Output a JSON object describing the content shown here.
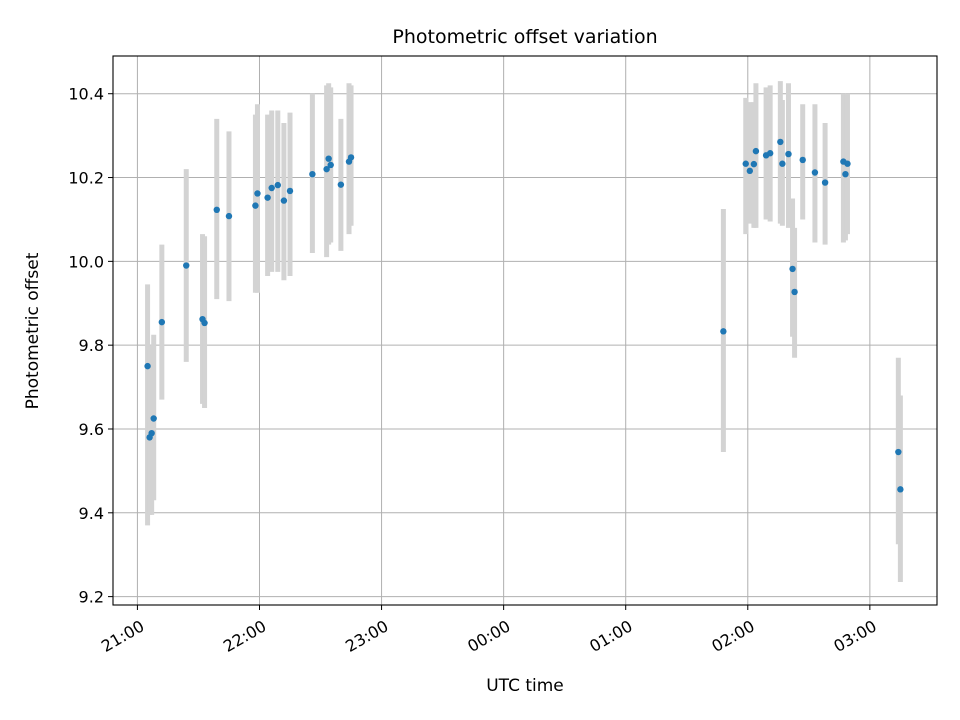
{
  "chart_data": {
    "type": "scatter",
    "title": "Photometric offset variation",
    "xlabel": "UTC time",
    "ylabel": "Photometric offset",
    "x_ticks": [
      "21:00",
      "22:00",
      "23:00",
      "00:00",
      "01:00",
      "02:00",
      "03:00"
    ],
    "y_ticks": [
      "9.2",
      "9.4",
      "9.6",
      "9.8",
      "10.0",
      "10.2",
      "10.4"
    ],
    "xlim_hours": [
      20.8,
      27.55
    ],
    "ylim": [
      9.18,
      10.49
    ],
    "grid": true,
    "colors": {
      "point": "#1f77b4",
      "errorbar": "#d3d3d3",
      "grid": "#b0b0b0"
    },
    "series": [
      {
        "x": [
          "21:05",
          "21:06",
          "21:07",
          "21:08",
          "21:12",
          "21:24",
          "21:32",
          "21:33",
          "21:39",
          "21:45",
          "21:58",
          "21:59",
          "22:04",
          "22:06",
          "22:09",
          "22:12",
          "22:15",
          "22:26",
          "22:33",
          "22:34",
          "22:35",
          "22:40",
          "22:44",
          "22:45",
          "01:48",
          "01:59",
          "02:01",
          "02:03",
          "02:04",
          "02:09",
          "02:11",
          "02:16",
          "02:17",
          "02:20",
          "02:22",
          "02:23",
          "02:27",
          "02:33",
          "02:38",
          "02:47",
          "02:48",
          "02:49"
        ],
        "y": [
          9.75,
          9.58,
          9.59,
          9.625,
          9.855,
          9.99,
          9.862,
          9.853,
          10.123,
          10.108,
          10.133,
          10.162,
          10.152,
          10.175,
          10.182,
          10.145,
          10.168,
          10.208,
          10.22,
          10.245,
          10.23,
          10.183,
          10.238,
          10.248,
          9.833,
          10.233,
          10.216,
          10.232,
          10.263,
          10.253,
          10.258,
          10.285,
          10.233,
          10.256,
          9.982,
          9.927,
          10.242,
          10.212,
          10.188,
          10.238,
          10.208,
          10.233
        ],
        "err_low": [
          9.37,
          9.395,
          9.395,
          9.43,
          9.67,
          9.76,
          9.66,
          9.65,
          9.91,
          9.905,
          9.925,
          9.925,
          9.965,
          9.975,
          9.975,
          9.955,
          9.965,
          10.02,
          10.01,
          10.04,
          10.045,
          10.025,
          10.065,
          10.085,
          9.545,
          10.065,
          10.09,
          10.08,
          10.08,
          10.1,
          10.095,
          10.09,
          10.085,
          10.08,
          9.82,
          9.77,
          10.1,
          10.045,
          10.04,
          10.045,
          10.05,
          10.065
        ],
        "err_high": [
          9.945,
          9.79,
          9.8,
          9.825,
          10.04,
          10.22,
          10.065,
          10.06,
          10.34,
          10.31,
          10.35,
          10.375,
          10.35,
          10.36,
          10.36,
          10.33,
          10.355,
          10.4,
          10.42,
          10.425,
          10.415,
          10.34,
          10.425,
          10.42,
          10.125,
          10.39,
          10.38,
          10.38,
          10.425,
          10.415,
          10.42,
          10.43,
          10.385,
          10.425,
          10.15,
          10.08,
          10.375,
          10.375,
          10.33,
          10.4,
          10.38,
          10.4
        ]
      },
      {
        "x": [
          "03:14",
          "03:15"
        ],
        "y": [
          9.545,
          9.456
        ],
        "err_low": [
          9.325,
          9.235
        ],
        "err_high": [
          9.77,
          9.68
        ]
      }
    ]
  }
}
